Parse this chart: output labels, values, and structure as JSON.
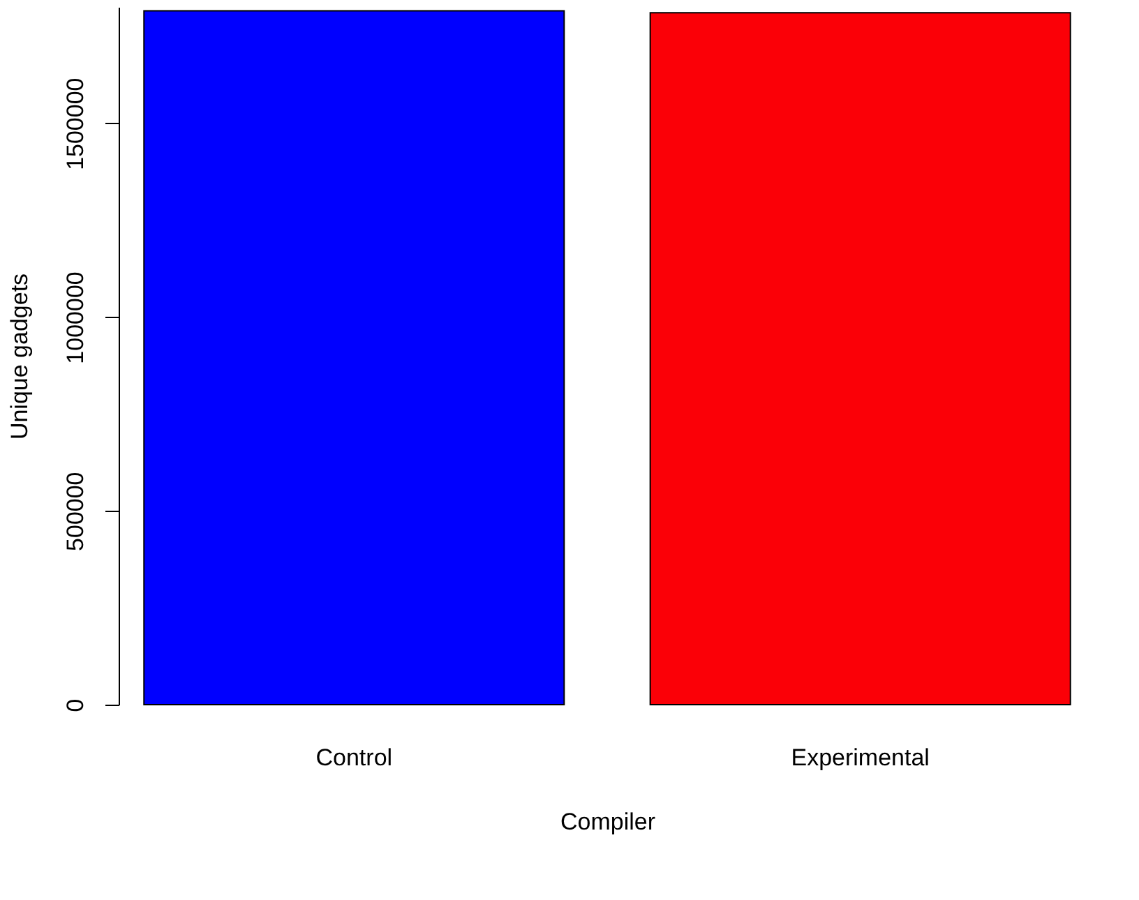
{
  "chart_data": {
    "type": "bar",
    "xlabel": "Compiler",
    "ylabel": "Unique gadgets",
    "categories": [
      "Control",
      "Experimental"
    ],
    "values": [
      1790000,
      1785000
    ],
    "colors": [
      "#0000ff",
      "#fb0007"
    ],
    "ylim": [
      0,
      1800000
    ],
    "yticks": [
      0,
      500000,
      1000000,
      1500000
    ],
    "grid": false
  }
}
